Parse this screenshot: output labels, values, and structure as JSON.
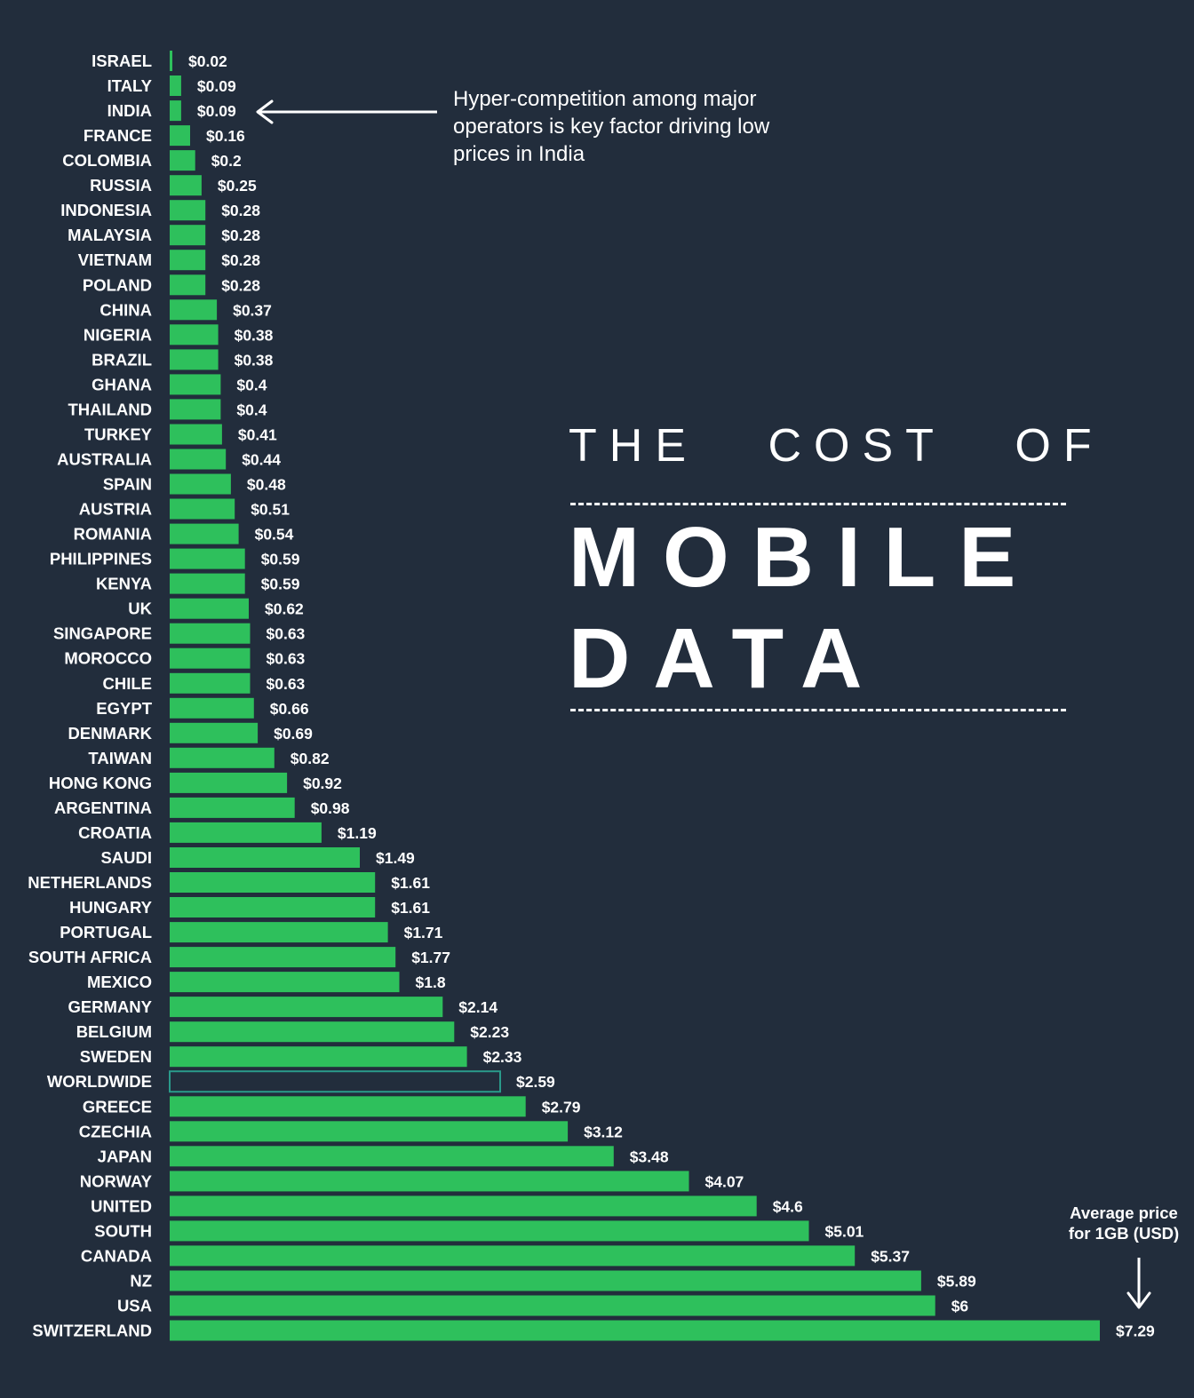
{
  "heading": {
    "line1": "THE COST OF",
    "line2": "MOBILE",
    "line3": "DATA"
  },
  "annotation": {
    "text": "Hyper-competition among major operators is key factor driving low prices in India",
    "target": "INDIA"
  },
  "axis_note": {
    "line1": "Average price",
    "line2": "for 1GB (USD)"
  },
  "colors": {
    "background": "#222d3c",
    "bar": "#2ec05c",
    "highlight_outline": "#2a9a8a",
    "text": "#ffffff"
  },
  "chart_data": {
    "type": "bar",
    "orientation": "horizontal",
    "title": "THE COST OF MOBILE DATA",
    "xlabel": "Average price for 1GB (USD)",
    "value_prefix": "$",
    "highlight_category": "WORLDWIDE",
    "categories": [
      "ISRAEL",
      "ITALY",
      "INDIA",
      "FRANCE",
      "COLOMBIA",
      "RUSSIA",
      "INDONESIA",
      "MALAYSIA",
      "VIETNAM",
      "POLAND",
      "CHINA",
      "NIGERIA",
      "BRAZIL",
      "GHANA",
      "THAILAND",
      "TURKEY",
      "AUSTRALIA",
      "SPAIN",
      "AUSTRIA",
      "ROMANIA",
      "PHILIPPINES",
      "KENYA",
      "UK",
      "SINGAPORE",
      "MOROCCO",
      "CHILE",
      "EGYPT",
      "DENMARK",
      "TAIWAN",
      "HONG KONG",
      "ARGENTINA",
      "CROATIA",
      "SAUDI",
      "NETHERLANDS",
      "HUNGARY",
      "PORTUGAL",
      "SOUTH AFRICA",
      "MEXICO",
      "GERMANY",
      "BELGIUM",
      "SWEDEN",
      "WORLDWIDE",
      "GREECE",
      "CZECHIA",
      "JAPAN",
      "NORWAY",
      "UNITED",
      "SOUTH",
      "CANADA",
      "NZ",
      "USA",
      "SWITZERLAND"
    ],
    "values": [
      0.02,
      0.09,
      0.09,
      0.16,
      0.2,
      0.25,
      0.28,
      0.28,
      0.28,
      0.28,
      0.37,
      0.38,
      0.38,
      0.4,
      0.4,
      0.41,
      0.44,
      0.48,
      0.51,
      0.54,
      0.59,
      0.59,
      0.62,
      0.63,
      0.63,
      0.63,
      0.66,
      0.69,
      0.82,
      0.92,
      0.98,
      1.19,
      1.49,
      1.61,
      1.61,
      1.71,
      1.77,
      1.8,
      2.14,
      2.23,
      2.33,
      2.59,
      2.79,
      3.12,
      3.48,
      4.07,
      4.6,
      5.01,
      5.37,
      5.89,
      6,
      7.29
    ],
    "value_labels": [
      "$0.02",
      "$0.09",
      "$0.09",
      "$0.16",
      "$0.2",
      "$0.25",
      "$0.28",
      "$0.28",
      "$0.28",
      "$0.28",
      "$0.37",
      "$0.38",
      "$0.38",
      "$0.4",
      "$0.4",
      "$0.41",
      "$0.44",
      "$0.48",
      "$0.51",
      "$0.54",
      "$0.59",
      "$0.59",
      "$0.62",
      "$0.63",
      "$0.63",
      "$0.63",
      "$0.66",
      "$0.69",
      "$0.82",
      "$0.92",
      "$0.98",
      "$1.19",
      "$1.49",
      "$1.61",
      "$1.61",
      "$1.71",
      "$1.77",
      "$1.8",
      "$2.14",
      "$2.23",
      "$2.33",
      "$2.59",
      "$2.79",
      "$3.12",
      "$3.48",
      "$4.07",
      "$4.6",
      "$5.01",
      "$5.37",
      "$5.89",
      "$6",
      "$7.29"
    ],
    "xlim": [
      0,
      7.29
    ],
    "grid": false,
    "legend": "none"
  }
}
